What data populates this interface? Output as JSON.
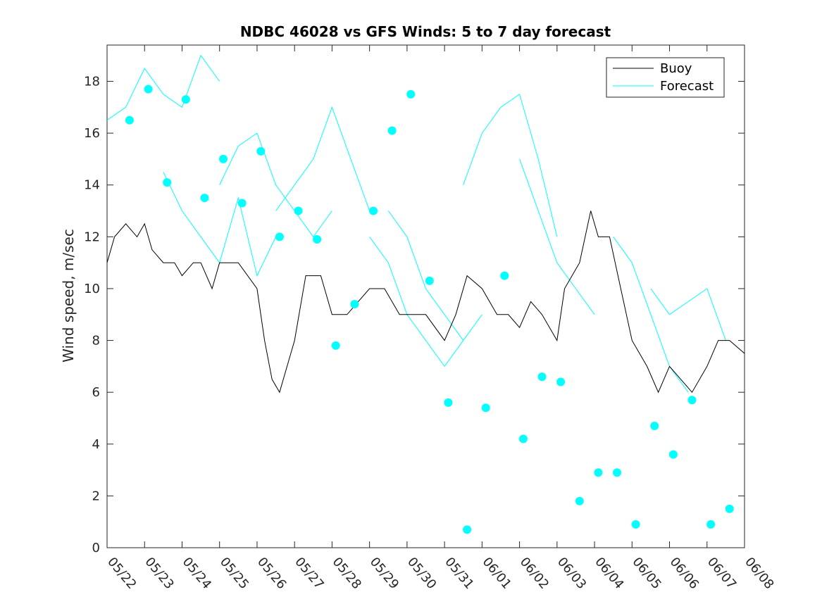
{
  "chart_data": {
    "type": "line",
    "title": "NDBC 46028 vs GFS Winds: 5 to 7 day forecast",
    "xlabel": "",
    "ylabel": "Wind speed, m/sec",
    "xlim": [
      0,
      17
    ],
    "ylim": [
      0,
      19.4
    ],
    "x_ticks": [
      "05/22",
      "05/23",
      "05/24",
      "05/25",
      "05/26",
      "05/27",
      "05/28",
      "05/29",
      "05/30",
      "05/31",
      "06/01",
      "06/02",
      "06/03",
      "06/04",
      "06/05",
      "06/06",
      "06/07",
      "06/08"
    ],
    "y_ticks": [
      0,
      2,
      4,
      6,
      8,
      10,
      12,
      14,
      16,
      18
    ],
    "x_units": "days since 05/22 00:00",
    "grid": false,
    "legend": {
      "position": "top-right",
      "entries": [
        "Buoy",
        "Forecast"
      ]
    },
    "colors": {
      "buoy": "#000000",
      "forecast": "#00ffff",
      "axes": "#262626"
    },
    "buoy_series": {
      "name": "Buoy",
      "points": [
        [
          0,
          11
        ],
        [
          0.2,
          12
        ],
        [
          0.5,
          12.5
        ],
        [
          0.8,
          12
        ],
        [
          1.0,
          12.5
        ],
        [
          1.2,
          11.5
        ],
        [
          1.5,
          11
        ],
        [
          1.8,
          11
        ],
        [
          2.0,
          10.5
        ],
        [
          2.3,
          11
        ],
        [
          2.5,
          11
        ],
        [
          2.8,
          10
        ],
        [
          3.0,
          11
        ],
        [
          3.5,
          11
        ],
        [
          4.0,
          10
        ],
        [
          4.2,
          8
        ],
        [
          4.4,
          6.5
        ],
        [
          4.6,
          6
        ],
        [
          5.0,
          8
        ],
        [
          5.3,
          10.5
        ],
        [
          5.7,
          10.5
        ],
        [
          6.0,
          9
        ],
        [
          6.4,
          9
        ],
        [
          7.0,
          10
        ],
        [
          7.4,
          10
        ],
        [
          7.8,
          9
        ],
        [
          8.5,
          9
        ],
        [
          9.0,
          8
        ],
        [
          9.3,
          9
        ],
        [
          9.6,
          10.5
        ],
        [
          10.0,
          10
        ],
        [
          10.4,
          9
        ],
        [
          10.7,
          9
        ],
        [
          11.0,
          8.5
        ],
        [
          11.3,
          9.5
        ],
        [
          11.6,
          9
        ],
        [
          12.0,
          8
        ],
        [
          12.2,
          10
        ],
        [
          12.6,
          11
        ],
        [
          12.9,
          13
        ],
        [
          13.1,
          12
        ],
        [
          13.4,
          12
        ],
        [
          13.7,
          10
        ],
        [
          14.0,
          8
        ],
        [
          14.4,
          7
        ],
        [
          14.7,
          6
        ],
        [
          15.0,
          7
        ],
        [
          15.3,
          6.5
        ],
        [
          15.6,
          6
        ],
        [
          16.0,
          7
        ],
        [
          16.3,
          8
        ],
        [
          16.6,
          8
        ],
        [
          17.0,
          7.5
        ]
      ]
    },
    "forecast_series": [
      {
        "name": "Forecast",
        "points": [
          [
            0,
            16.5
          ],
          [
            0.5,
            17
          ],
          [
            1.0,
            18.5
          ],
          [
            1.5,
            17.5
          ],
          [
            2.0,
            17
          ],
          [
            2.5,
            19
          ],
          [
            3.0,
            18
          ]
        ]
      },
      {
        "name": "Forecast",
        "points": [
          [
            1.5,
            14.5
          ],
          [
            2.0,
            13
          ],
          [
            2.5,
            12
          ],
          [
            3.0,
            11
          ],
          [
            3.5,
            13.5
          ],
          [
            4.0,
            10.5
          ],
          [
            4.5,
            12
          ]
        ]
      },
      {
        "name": "Forecast",
        "points": [
          [
            3.0,
            14
          ],
          [
            3.5,
            15.5
          ],
          [
            4.0,
            16
          ],
          [
            4.5,
            14
          ],
          [
            5.0,
            13
          ],
          [
            5.5,
            12
          ],
          [
            6.0,
            13
          ]
        ]
      },
      {
        "name": "Forecast",
        "points": [
          [
            4.5,
            13
          ],
          [
            5.0,
            14
          ],
          [
            5.5,
            15
          ],
          [
            6.0,
            17
          ],
          [
            6.5,
            15
          ],
          [
            7.0,
            13
          ]
        ]
      },
      {
        "name": "Forecast",
        "points": [
          [
            7.0,
            12
          ],
          [
            7.5,
            11
          ],
          [
            8.0,
            9
          ],
          [
            8.5,
            8
          ],
          [
            9.0,
            7
          ],
          [
            9.5,
            8
          ],
          [
            10.0,
            9
          ]
        ]
      },
      {
        "name": "Forecast",
        "points": [
          [
            7.5,
            13
          ],
          [
            8.0,
            12
          ],
          [
            8.5,
            10
          ],
          [
            9.0,
            9
          ],
          [
            9.5,
            8
          ]
        ]
      },
      {
        "name": "Forecast",
        "points": [
          [
            9.5,
            14
          ],
          [
            10.0,
            16
          ],
          [
            10.5,
            17
          ],
          [
            11.0,
            17.5
          ],
          [
            11.5,
            15
          ],
          [
            12.0,
            12
          ]
        ]
      },
      {
        "name": "Forecast",
        "points": [
          [
            11.0,
            15
          ],
          [
            11.5,
            13
          ],
          [
            12.0,
            11
          ],
          [
            12.5,
            10
          ],
          [
            13.0,
            9
          ]
        ]
      },
      {
        "name": "Forecast",
        "points": [
          [
            13.5,
            12
          ],
          [
            14.0,
            11
          ],
          [
            14.5,
            9
          ],
          [
            15.0,
            7
          ],
          [
            15.5,
            6
          ]
        ]
      },
      {
        "name": "Forecast",
        "points": [
          [
            14.5,
            10
          ],
          [
            15.0,
            9
          ],
          [
            15.5,
            9.5
          ],
          [
            16.0,
            10
          ],
          [
            16.5,
            8
          ]
        ]
      }
    ],
    "forecast_markers": [
      [
        0.6,
        16.5
      ],
      [
        1.1,
        17.7
      ],
      [
        1.6,
        14.1
      ],
      [
        2.1,
        17.3
      ],
      [
        2.6,
        13.5
      ],
      [
        3.1,
        15.0
      ],
      [
        3.6,
        13.3
      ],
      [
        4.1,
        15.3
      ],
      [
        4.6,
        12.0
      ],
      [
        5.1,
        13.0
      ],
      [
        5.6,
        11.9
      ],
      [
        6.1,
        7.8
      ],
      [
        6.6,
        9.4
      ],
      [
        7.1,
        13.0
      ],
      [
        7.6,
        16.1
      ],
      [
        8.1,
        17.5
      ],
      [
        8.6,
        10.3
      ],
      [
        9.1,
        5.6
      ],
      [
        9.6,
        0.7
      ],
      [
        10.1,
        5.4
      ],
      [
        10.6,
        10.5
      ],
      [
        11.1,
        4.2
      ],
      [
        11.6,
        6.6
      ],
      [
        12.1,
        6.4
      ],
      [
        12.6,
        1.8
      ],
      [
        13.1,
        2.9
      ],
      [
        13.6,
        2.9
      ],
      [
        14.1,
        0.9
      ],
      [
        14.6,
        4.7
      ],
      [
        15.1,
        3.6
      ],
      [
        15.6,
        5.7
      ],
      [
        16.1,
        0.9
      ],
      [
        16.6,
        1.5
      ]
    ]
  }
}
